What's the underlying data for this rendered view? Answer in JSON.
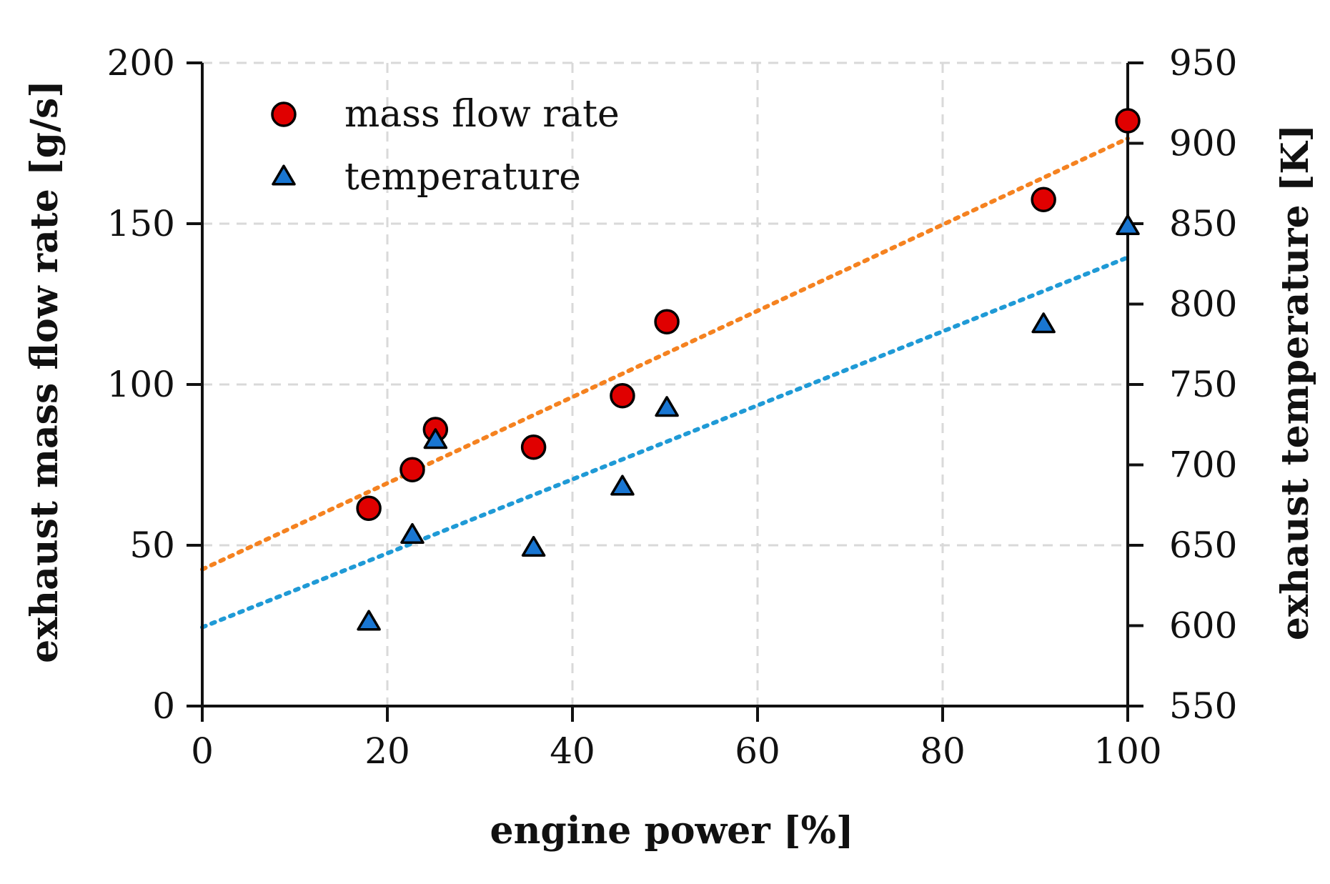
{
  "chart_data": {
    "type": "scatter",
    "title": "",
    "xlabel": "engine power [%]",
    "ylabel": "exhaust mass flow rate [g/s]",
    "y2label": "exhaust temperature [K]",
    "xlim": [
      0,
      100
    ],
    "ylim": [
      0,
      200
    ],
    "y2lim": [
      550,
      950
    ],
    "x_ticks": [
      "0",
      "20",
      "40",
      "60",
      "80",
      "100"
    ],
    "y_ticks": [
      "0",
      "50",
      "100",
      "150",
      "200"
    ],
    "y2_ticks": [
      "550",
      "600",
      "650",
      "700",
      "750",
      "800",
      "850",
      "900",
      "950"
    ],
    "grid": true,
    "legend_position": "top-left",
    "series": [
      {
        "name": "mass flow rate",
        "axis": "left",
        "marker": "circle",
        "color": "#e00000",
        "x": [
          18,
          22.7,
          25.2,
          35.8,
          45.4,
          50.2,
          90.9,
          100
        ],
        "y": [
          61.5,
          73.5,
          86,
          80.5,
          96.5,
          119.5,
          157.5,
          182
        ],
        "trendline": {
          "x": [
            0,
            100
          ],
          "y": [
            42.5,
            176.5
          ],
          "color": "#f58220"
        }
      },
      {
        "name": "temperature",
        "axis": "right",
        "marker": "triangle",
        "color": "#1976d2",
        "x": [
          18,
          22.7,
          25.2,
          35.8,
          45.4,
          50.2,
          90.9,
          100
        ],
        "y": [
          602,
          656,
          715,
          648,
          686,
          735,
          787,
          848
        ],
        "trendline": {
          "x": [
            0,
            100
          ],
          "y": [
            599,
            829
          ],
          "color": "#1f9ad6"
        }
      }
    ]
  }
}
